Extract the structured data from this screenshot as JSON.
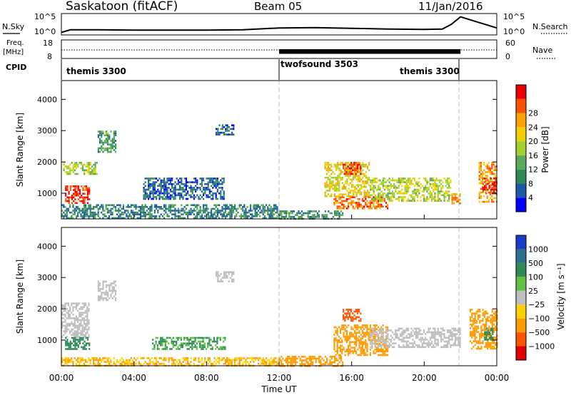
{
  "header": {
    "station": "Saskatoon (fitACF)",
    "beam": "Beam 05",
    "date": "11/Jan/2016"
  },
  "noise_panel": {
    "left_label": "N.Sky",
    "right_label": "N.Search",
    "left_ticks": [
      "10^5",
      "10^0"
    ],
    "right_ticks": [
      "10^5",
      "10^0"
    ]
  },
  "freq_panel": {
    "left_label_1": "Freq.",
    "left_label_2": "[MHz]",
    "right_label": "Nave",
    "left_ticks": [
      "18",
      "8"
    ],
    "right_ticks": [
      "60",
      "0"
    ]
  },
  "cpid": {
    "label": "CPID",
    "modes": [
      {
        "name": "themis 3300",
        "start_hour": 0
      },
      {
        "name": "twofsound 3503",
        "start_hour": 12
      },
      {
        "name": "themis 3300",
        "start_hour": 22
      }
    ]
  },
  "axes": {
    "x_label": "Time UT",
    "x_ticks": [
      "00:00",
      "04:00",
      "08:00",
      "12:00",
      "16:00",
      "20:00",
      "00:00"
    ],
    "y_label": "Slant Range [km]",
    "y_ticks": [
      "1000",
      "2000",
      "3000",
      "4000"
    ]
  },
  "colors": {
    "power_scale": [
      "#0000ff",
      "#1e5aa8",
      "#2e8b57",
      "#5aaa5a",
      "#a0d030",
      "#f0d000",
      "#ffa000",
      "#ff5000",
      "#ee0000"
    ],
    "velocity_scale": [
      "#1a3cc8",
      "#2e6e8e",
      "#2e8b57",
      "#60c040",
      "#bebebe",
      "#ffd000",
      "#ff9a00",
      "#ff5500",
      "#e00000"
    ],
    "cpid_boundary_line": "#bbbbbb"
  },
  "chart_data": [
    {
      "type": "line",
      "panel": "noise",
      "left_label": "N.Sky",
      "right_label": "N.Search",
      "x_hours": [
        0,
        0.5,
        2,
        4,
        6,
        8,
        10,
        12,
        14,
        16,
        18,
        20,
        21,
        21.5,
        22,
        23,
        24
      ],
      "n_sky_log10": [
        0.3,
        1,
        1,
        0.9,
        0.9,
        0.9,
        1,
        1.5,
        1.6,
        1.4,
        1.2,
        1.1,
        1.2,
        2.5,
        4.5,
        3,
        1.5
      ]
    },
    {
      "type": "line",
      "panel": "frequency",
      "left_label": "Freq. [MHz]",
      "right_label": "Nave",
      "xlim": [
        0,
        24
      ],
      "freq_ylim": [
        8,
        18
      ],
      "nave_ylim": [
        0,
        60
      ],
      "freq_mhz": [
        [
          0,
          10.5
        ],
        [
          12,
          10.5
        ],
        [
          22,
          10.5
        ],
        [
          24,
          10.5
        ]
      ],
      "twofsound_band_mhz": [
        10.5,
        13.0
      ]
    },
    {
      "type": "heatmap",
      "panel": "power",
      "legend_title": "Power [dB]",
      "scale_labels": [
        "4",
        "8",
        "12",
        "16",
        "20",
        "24",
        "28"
      ],
      "xlim": [
        0,
        24
      ],
      "ylim": [
        180,
        4600
      ],
      "xlabel": "",
      "ylabel": "Slant Range [km]",
      "regions": [
        {
          "t0": 0.2,
          "t1": 1.5,
          "r0": 700,
          "r1": 1250,
          "db": 27
        },
        {
          "t0": 0.1,
          "t1": 2.0,
          "r0": 1600,
          "r1": 2000,
          "db": 15
        },
        {
          "t0": 2.0,
          "t1": 3.0,
          "r0": 2300,
          "r1": 3000,
          "db": 10
        },
        {
          "t0": 0.0,
          "t1": 12.0,
          "r0": 200,
          "r1": 650,
          "db": 8
        },
        {
          "t0": 4.5,
          "t1": 9.0,
          "r0": 800,
          "r1": 1500,
          "db": 6
        },
        {
          "t0": 8.5,
          "t1": 9.5,
          "r0": 2900,
          "r1": 3200,
          "db": 6
        },
        {
          "t0": 12.0,
          "t1": 15.5,
          "r0": 200,
          "r1": 450,
          "db": 10
        },
        {
          "t0": 14.5,
          "t1": 17.0,
          "r0": 900,
          "r1": 2000,
          "db": 18
        },
        {
          "t0": 15.5,
          "t1": 16.5,
          "r0": 1600,
          "r1": 2000,
          "db": 26
        },
        {
          "t0": 15.0,
          "t1": 18.0,
          "r0": 500,
          "r1": 900,
          "db": 24
        },
        {
          "t0": 17.0,
          "t1": 21.5,
          "r0": 750,
          "r1": 1500,
          "db": 16
        },
        {
          "t0": 21.5,
          "t1": 22.0,
          "r0": 700,
          "r1": 1000,
          "db": 22
        },
        {
          "t0": 23.0,
          "t1": 24.0,
          "r0": 700,
          "r1": 2000,
          "db": 22
        },
        {
          "t0": 23.2,
          "t1": 23.9,
          "r0": 1000,
          "r1": 1500,
          "db": 28
        }
      ]
    },
    {
      "type": "heatmap",
      "panel": "velocity",
      "legend_title": "Velocity [m s⁻¹]",
      "scale_labels": [
        "1000",
        "500",
        "100",
        "25",
        "−25",
        "−100",
        "−500",
        "−1000"
      ],
      "xlim": [
        0,
        24
      ],
      "ylim": [
        180,
        4600
      ],
      "xlabel": "Time UT",
      "ylabel": "Slant Range [km]",
      "regions": [
        {
          "t0": 0.0,
          "t1": 1.5,
          "r0": 1100,
          "r1": 2200,
          "v": 0
        },
        {
          "t0": 0.2,
          "t1": 1.5,
          "r0": 700,
          "r1": 1100,
          "v": 90
        },
        {
          "t0": 2.0,
          "t1": 3.0,
          "r0": 2300,
          "r1": 2900,
          "v": 0
        },
        {
          "t0": 0.0,
          "t1": 12.0,
          "r0": 200,
          "r1": 450,
          "v": -60
        },
        {
          "t0": 5.0,
          "t1": 9.0,
          "r0": 700,
          "r1": 1100,
          "v": 60
        },
        {
          "t0": 8.5,
          "t1": 9.5,
          "r0": 2900,
          "r1": 3200,
          "v": 0
        },
        {
          "t0": 12.0,
          "t1": 15.5,
          "r0": 200,
          "r1": 500,
          "v": -100
        },
        {
          "t0": 15.0,
          "t1": 18.0,
          "r0": 500,
          "r1": 1500,
          "v": -150
        },
        {
          "t0": 15.5,
          "t1": 16.5,
          "r0": 1600,
          "r1": 2000,
          "v": -400
        },
        {
          "t0": 17.0,
          "t1": 22.0,
          "r0": 800,
          "r1": 1400,
          "v": 0
        },
        {
          "t0": 22.5,
          "t1": 24.0,
          "r0": 700,
          "r1": 2000,
          "v": -80
        },
        {
          "t0": 23.3,
          "t1": 23.8,
          "r0": 1000,
          "r1": 1400,
          "v": 120
        }
      ]
    }
  ]
}
